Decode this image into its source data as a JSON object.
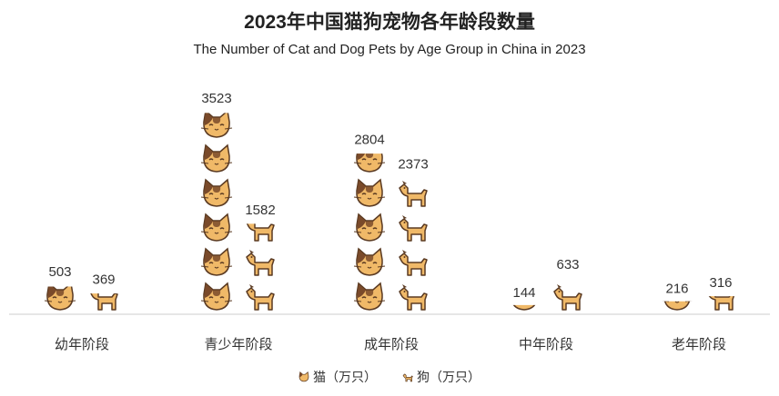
{
  "chart_data": {
    "type": "bar",
    "title": "2023年中国猫狗宠物各年龄段数量",
    "subtitle": "The Number of Cat and Dog Pets by Age Group in China in 2023",
    "categories": [
      "幼年阶段",
      "青少年阶段",
      "成年阶段",
      "中年阶段",
      "老年阶段"
    ],
    "series": [
      {
        "name": "猫（万只）",
        "values": [
          503,
          3523,
          2804,
          144,
          216
        ]
      },
      {
        "name": "狗（万只）",
        "values": [
          369,
          1582,
          2373,
          633,
          316
        ]
      }
    ],
    "unit_per_icon": 600,
    "legend_position": "bottom",
    "grid": false,
    "colors": {
      "cat_face": "#f0b968",
      "cat_patch_dark": "#7a4a2a",
      "dog_body": "#f0b968",
      "outline": "#5a3a22",
      "axis": "#cccccc"
    }
  }
}
